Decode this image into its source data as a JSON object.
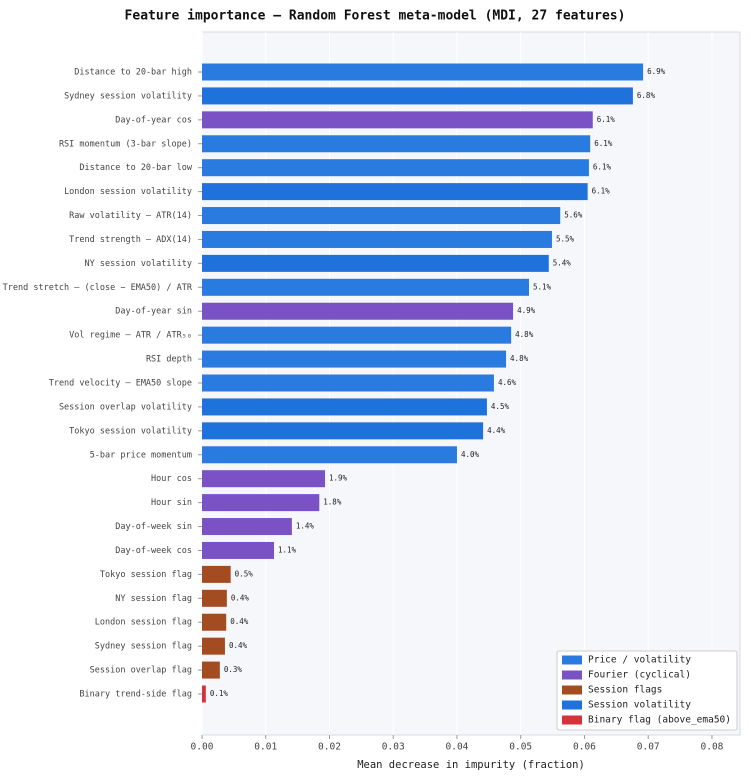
{
  "chart_data": {
    "type": "barh",
    "title": "Feature importance — Random Forest meta-model (MDI, 27 features)",
    "xlabel": "Mean decrease in impurity (fraction)",
    "categories": [
      "Distance to 20-bar high",
      "Sydney session volatility",
      "Day-of-year cos",
      "RSI momentum (3-bar slope)",
      "Distance to 20-bar low",
      "London session volatility",
      "Raw volatility — ATR(14)",
      "Trend strength — ADX(14)",
      "NY session volatility",
      "Trend stretch — (close − EMA50) / ATR",
      "Day-of-year sin",
      "Vol regime — ATR / ATR₅₀",
      "RSI depth",
      "Trend velocity — EMA50 slope",
      "Session overlap volatility",
      "Tokyo session volatility",
      "5-bar price momentum",
      "Hour cos",
      "Hour sin",
      "Day-of-week sin",
      "Day-of-week cos",
      "Tokyo session flag",
      "NY session flag",
      "London session flag",
      "Sydney session flag",
      "Session overlap flag",
      "Binary trend-side flag"
    ],
    "values": [
      0.0692,
      0.0676,
      0.0613,
      0.0609,
      0.0607,
      0.0605,
      0.0562,
      0.0549,
      0.0544,
      0.0513,
      0.0488,
      0.0485,
      0.0477,
      0.0458,
      0.0447,
      0.0441,
      0.04,
      0.0193,
      0.0184,
      0.0141,
      0.0113,
      0.0045,
      0.0039,
      0.0038,
      0.0036,
      0.0028,
      0.0006
    ],
    "value_labels": [
      "6.9%",
      "6.8%",
      "6.1%",
      "6.1%",
      "6.1%",
      "6.1%",
      "5.6%",
      "5.5%",
      "5.4%",
      "5.1%",
      "4.9%",
      "4.8%",
      "4.8%",
      "4.6%",
      "4.5%",
      "4.4%",
      "4.0%",
      "1.9%",
      "1.8%",
      "1.4%",
      "1.1%",
      "0.5%",
      "0.4%",
      "0.4%",
      "0.4%",
      "0.3%",
      "0.1%"
    ],
    "colors": [
      "#2a7be0",
      "#1f72dc",
      "#7b52c6",
      "#2a7be0",
      "#2a7be0",
      "#1f72dc",
      "#2a7be0",
      "#2a7be0",
      "#1f72dc",
      "#2a7be0",
      "#7b52c6",
      "#2a7be0",
      "#2a7be0",
      "#2a7be0",
      "#1f72dc",
      "#1f72dc",
      "#2a7be0",
      "#7b52c6",
      "#7b52c6",
      "#7b52c6",
      "#7b52c6",
      "#a34c22",
      "#a34c22",
      "#a34c22",
      "#a34c22",
      "#a34c22",
      "#d6323c"
    ],
    "legend": [
      {
        "name": "Price / volatility",
        "color": "#2a7be0"
      },
      {
        "name": "Fourier (cyclical)",
        "color": "#7b52c6"
      },
      {
        "name": "Session flags",
        "color": "#a34c22"
      },
      {
        "name": "Session volatility",
        "color": "#1f72dc"
      },
      {
        "name": "Binary flag (above_ema50)",
        "color": "#d6323c"
      }
    ],
    "legend_position": "lower right",
    "xlim": [
      0,
      0.0844
    ],
    "xticks": [
      {
        "value": 0,
        "label": "0.00"
      },
      {
        "value": 0.01,
        "label": "0.01"
      },
      {
        "value": 0.02,
        "label": "0.02"
      },
      {
        "value": 0.03,
        "label": "0.03"
      },
      {
        "value": 0.04,
        "label": "0.04"
      },
      {
        "value": 0.05,
        "label": "0.05"
      },
      {
        "value": 0.06,
        "label": "0.06"
      },
      {
        "value": 0.07,
        "label": "0.07"
      },
      {
        "value": 0.08,
        "label": "0.08"
      }
    ],
    "grid": true
  }
}
